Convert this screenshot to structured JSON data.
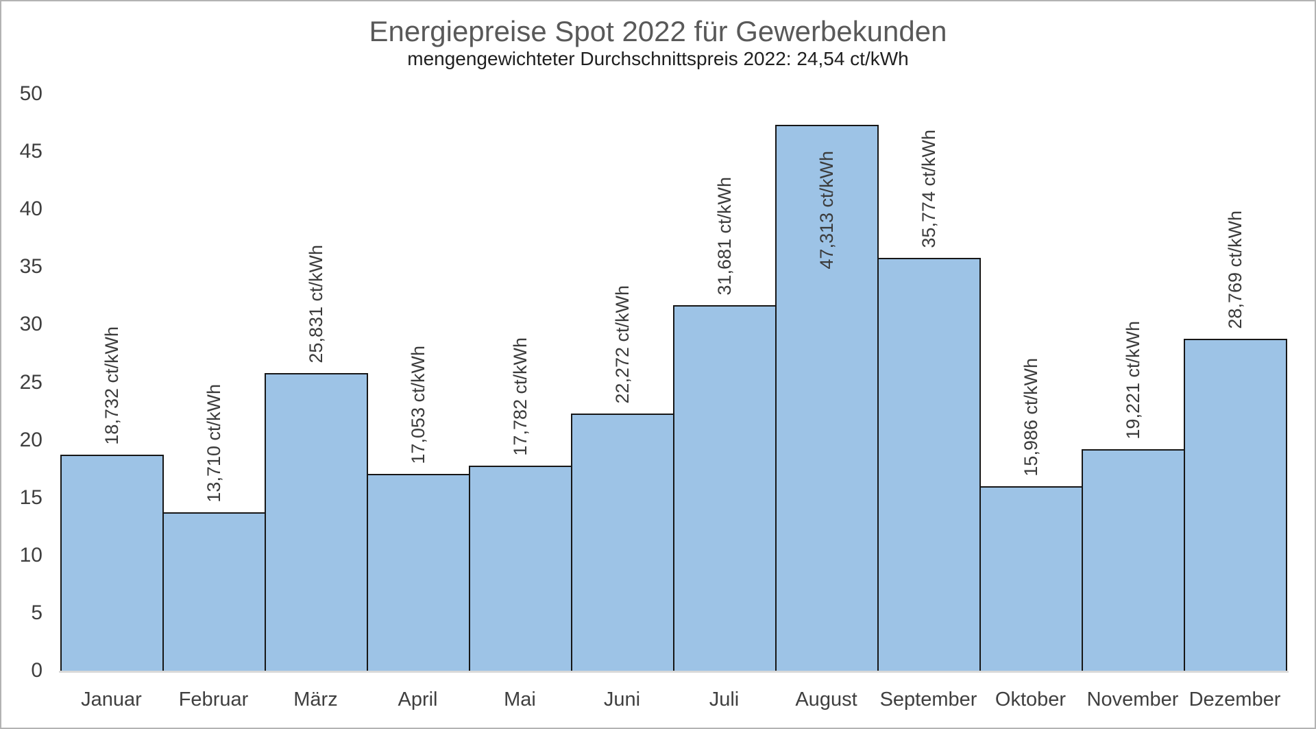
{
  "chart_data": {
    "type": "bar",
    "title": "Energiepreise Spot 2022 für Gewerbekunden",
    "subtitle": "mengengewichteter Durchschnittspreis 2022: 24,54 ct/kWh",
    "unit": "ct/kWh",
    "categories": [
      "Januar",
      "Februar",
      "März",
      "April",
      "Mai",
      "Juni",
      "Juli",
      "August",
      "September",
      "Oktober",
      "November",
      "Dezember"
    ],
    "values": [
      18.732,
      13.71,
      25.831,
      17.053,
      17.782,
      22.272,
      31.681,
      47.313,
      35.774,
      15.986,
      19.221,
      28.769
    ],
    "value_labels": [
      "18,732 ct/kWh",
      "13,710 ct/kWh",
      "25,831 ct/kWh",
      "17,053 ct/kWh",
      "17,782 ct/kWh",
      "22,272 ct/kWh",
      "31,681 ct/kWh",
      "47,313 ct/kWh",
      "35,774 ct/kWh",
      "15,986 ct/kWh",
      "19,221 ct/kWh",
      "28,769 ct/kWh"
    ],
    "label_placement": [
      "outside",
      "outside",
      "outside",
      "outside",
      "outside",
      "outside",
      "outside",
      "inside",
      "outside",
      "outside",
      "outside",
      "outside"
    ],
    "ylim": [
      0,
      50
    ],
    "yticks": [
      0,
      5,
      10,
      15,
      20,
      25,
      30,
      35,
      40,
      45,
      50
    ],
    "grid": false,
    "legend": false,
    "colors": {
      "bar_fill": "#9DC3E6",
      "bar_border": "#161616",
      "axis_line": "#D9D9D9",
      "title": "#595959",
      "subtitle": "#1F1F1F",
      "tick_text": "#3F3F3F",
      "label_text": "#3B3B3B"
    }
  }
}
